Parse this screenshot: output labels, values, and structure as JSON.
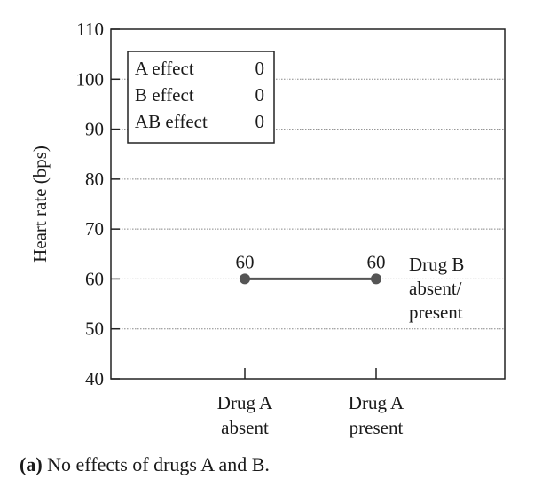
{
  "chart_data": {
    "type": "line",
    "ylabel": "Heart rate (bps)",
    "ylim": [
      40,
      110
    ],
    "yticks": [
      40,
      50,
      60,
      70,
      80,
      90,
      100,
      110
    ],
    "grid": true,
    "categories": [
      "Drug A absent",
      "Drug A present"
    ],
    "category_labels": [
      [
        "Drug A",
        "absent"
      ],
      [
        "Drug A",
        "present"
      ]
    ],
    "series": [
      {
        "name": "Drug B absent/ present",
        "label_lines": [
          "Drug B",
          "absent/",
          "present"
        ],
        "values": [
          60,
          60
        ],
        "data_labels": [
          "60",
          "60"
        ],
        "color": "#555555"
      }
    ],
    "effects_box": [
      {
        "label": "A effect",
        "value": "0"
      },
      {
        "label": "B effect",
        "value": "0"
      },
      {
        "label": "AB effect",
        "value": "0"
      }
    ]
  },
  "caption": {
    "tag": "(a)",
    "text": " No effects of drugs A and B."
  }
}
